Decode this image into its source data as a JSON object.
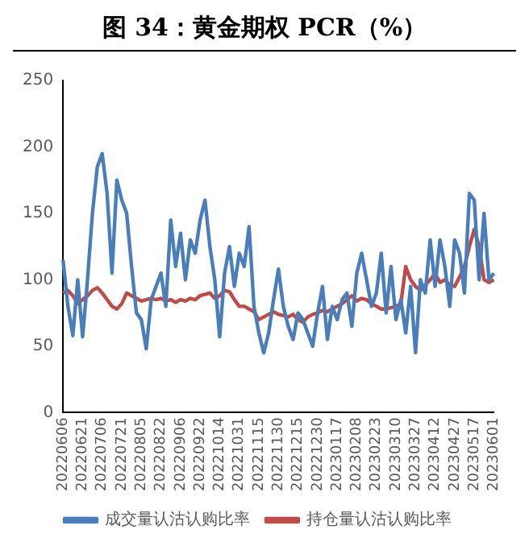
{
  "chart_data": {
    "type": "line",
    "title": "图 34：黄金期权 PCR（%）",
    "categories": [
      "20220606",
      null,
      null,
      null,
      "20220621",
      null,
      null,
      null,
      "20220706",
      null,
      null,
      null,
      "20220721",
      null,
      null,
      null,
      "20220805",
      null,
      null,
      null,
      "20220822",
      null,
      null,
      null,
      "20220906",
      null,
      null,
      null,
      "20220922",
      null,
      null,
      null,
      "20221014",
      null,
      null,
      null,
      "20221031",
      null,
      null,
      null,
      "20221115",
      null,
      null,
      null,
      "20221130",
      null,
      null,
      null,
      "20221215",
      null,
      null,
      null,
      "20221230",
      null,
      null,
      null,
      "20230117",
      null,
      null,
      null,
      "20230208",
      null,
      null,
      null,
      "20230223",
      null,
      null,
      null,
      "20230310",
      null,
      null,
      null,
      "20230327",
      null,
      null,
      null,
      "20230412",
      null,
      null,
      null,
      "20230427",
      null,
      null,
      null,
      "20230517",
      null,
      null,
      null,
      "20230601"
    ],
    "series": [
      {
        "name": "成交量认沽认购比率",
        "color": "#4a7ebb",
        "values": [
          115,
          80,
          58,
          100,
          57,
          100,
          150,
          185,
          195,
          165,
          105,
          175,
          160,
          150,
          110,
          75,
          70,
          48,
          85,
          95,
          105,
          80,
          145,
          110,
          135,
          100,
          130,
          120,
          145,
          160,
          125,
          100,
          57,
          105,
          125,
          95,
          120,
          110,
          140,
          80,
          60,
          45,
          60,
          85,
          108,
          80,
          65,
          55,
          75,
          70,
          60,
          50,
          75,
          95,
          55,
          80,
          70,
          85,
          90,
          65,
          105,
          120,
          100,
          80,
          90,
          120,
          75,
          110,
          70,
          85,
          60,
          95,
          45,
          100,
          90,
          130,
          95,
          130,
          110,
          80,
          130,
          120,
          90,
          165,
          160,
          100,
          150,
          100,
          105
        ]
      },
      {
        "name": "持仓量认沽认购比率",
        "color": "#be4b48",
        "values": [
          90,
          92,
          88,
          82,
          85,
          88,
          92,
          94,
          90,
          85,
          80,
          78,
          82,
          90,
          88,
          86,
          84,
          85,
          86,
          85,
          86,
          84,
          85,
          83,
          85,
          84,
          86,
          85,
          88,
          89,
          90,
          86,
          88,
          92,
          91,
          85,
          80,
          80,
          78,
          76,
          70,
          72,
          74,
          76,
          74,
          73,
          72,
          74,
          70,
          68,
          72,
          74,
          75,
          77,
          76,
          78,
          80,
          82,
          85,
          88,
          84,
          86,
          85,
          82,
          80,
          78,
          78,
          79,
          80,
          82,
          110,
          100,
          95,
          92,
          96,
          100,
          105,
          98,
          100,
          96,
          95,
          102,
          110,
          125,
          138,
          125,
          100,
          98,
          100
        ]
      }
    ],
    "ylim": [
      0,
      250
    ],
    "yticks": [
      0,
      50,
      100,
      150,
      200,
      250
    ],
    "grid": false,
    "legend": "bottom",
    "marker": "none",
    "line_style": "solid"
  }
}
